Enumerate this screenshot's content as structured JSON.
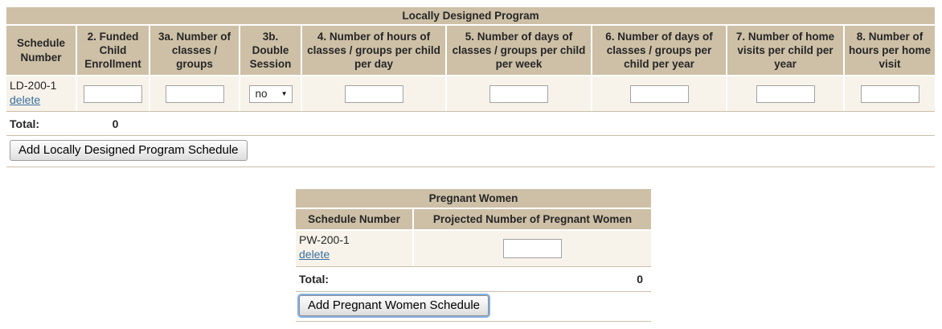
{
  "colors": {
    "header_bg": "#cdc0a7",
    "row_bg": "#f7f3ea",
    "rule_line": "#c9bfa8",
    "link_blue": "#3a6d9e",
    "focus_ring_blue": "#84b1e2"
  },
  "icons": {
    "select_arrow": "▼"
  },
  "ld_table": {
    "title": "Locally Designed Program",
    "columns": [
      "Schedule Number",
      "2. Funded Child Enrollment",
      "3a. Number of classes / groups",
      "3b. Double Session",
      "4. Number of hours of classes / groups per child per day",
      "5. Number of days of classes / groups per child per week",
      "6. Number of days of classes / groups per child per year",
      "7. Number of home visits per child per year",
      "8. Number of hours per home visit"
    ],
    "row": {
      "schedule_number": "LD-200-1",
      "delete_label": "delete",
      "double_session": "no",
      "inputs": {
        "funded_child_enrollment": "",
        "number_of_classes": "",
        "hours_per_day": "",
        "days_per_week": "",
        "days_per_year": "",
        "home_visits_per_year": "",
        "hours_per_home_visit": ""
      }
    },
    "total_label": "Total:",
    "total_value": "0",
    "add_button_label": "Add Locally Designed Program Schedule"
  },
  "pw_table": {
    "title": "Pregnant Women",
    "columns": [
      "Schedule Number",
      "Projected Number of Pregnant Women"
    ],
    "row": {
      "schedule_number": "PW-200-1",
      "delete_label": "delete",
      "projected_number": ""
    },
    "total_label": "Total:",
    "total_value": "0",
    "add_button_label": "Add Pregnant Women Schedule"
  }
}
